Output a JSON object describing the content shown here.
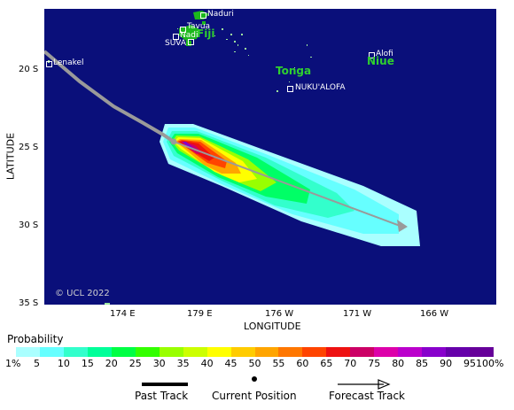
{
  "map": {
    "background_color": "#0a0f7a",
    "land_color": "#1cb81c",
    "track_color": "#9a9a9a",
    "copyright": "© UCL 2022",
    "lat_ticks": [
      "20 S",
      "25 S",
      "30 S",
      "35 S"
    ],
    "lon_ticks": [
      "174 E",
      "179 E",
      "176 W",
      "171 W",
      "166 W"
    ],
    "places": [
      {
        "name": "Naduri",
        "kind": "town"
      },
      {
        "name": "Tavua",
        "kind": "town"
      },
      {
        "name": "Nadi",
        "kind": "town"
      },
      {
        "name": "SUVA",
        "kind": "town"
      },
      {
        "name": "Lenakel",
        "kind": "town"
      },
      {
        "name": "Alofi",
        "kind": "town"
      },
      {
        "name": "NUKU'ALOFA",
        "kind": "town"
      }
    ],
    "regions": [
      "Fiji",
      "Tonga",
      "Niue"
    ]
  },
  "axes": {
    "xlabel": "LONGITUDE",
    "ylabel": "LATITUDE"
  },
  "legend": {
    "title": "Probability",
    "scale": [
      {
        "label": "1%",
        "color": "#aaffff"
      },
      {
        "label": "5",
        "color": "#66ffff"
      },
      {
        "label": "10",
        "color": "#33ffcc"
      },
      {
        "label": "15",
        "color": "#00ff99"
      },
      {
        "label": "20",
        "color": "#00ff44"
      },
      {
        "label": "25",
        "color": "#33ff00"
      },
      {
        "label": "30",
        "color": "#99ff00"
      },
      {
        "label": "35",
        "color": "#ccff00"
      },
      {
        "label": "40",
        "color": "#ffff00"
      },
      {
        "label": "45",
        "color": "#ffcc00"
      },
      {
        "label": "50",
        "color": "#ffa500"
      },
      {
        "label": "55",
        "color": "#ff7700"
      },
      {
        "label": "60",
        "color": "#ff4400"
      },
      {
        "label": "65",
        "color": "#ee1111"
      },
      {
        "label": "70",
        "color": "#cc0066"
      },
      {
        "label": "75",
        "color": "#dd00aa"
      },
      {
        "label": "80",
        "color": "#bb00cc"
      },
      {
        "label": "85",
        "color": "#8800cc"
      },
      {
        "label": "90",
        "color": "#6600aa"
      },
      {
        "label": "95",
        "color": "#660099"
      },
      {
        "label": "100%",
        "color": "#550066"
      }
    ],
    "past_track": "Past Track",
    "current_position": "Current Position",
    "forecast_track": "Forecast Track"
  }
}
